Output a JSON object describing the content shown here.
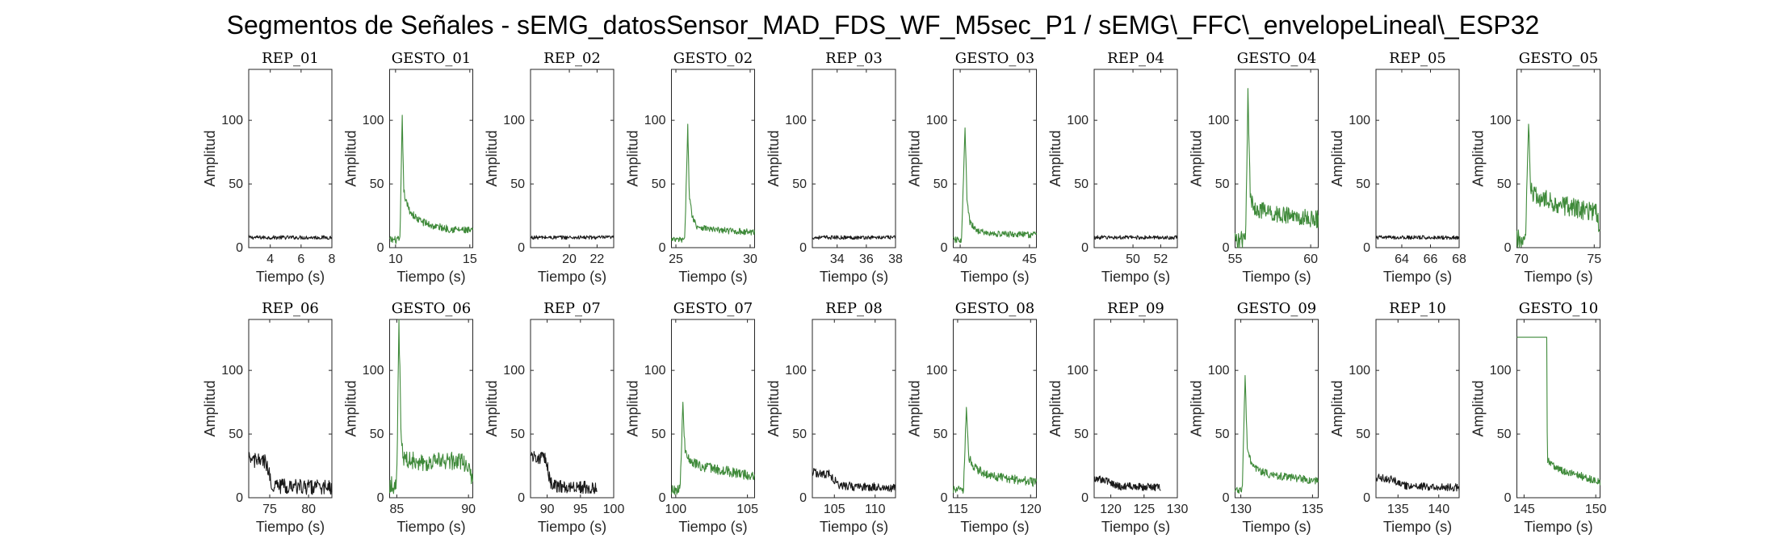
{
  "figure": {
    "title": "Segmentos de Señales - sEMG_datosSensor_MAD_FDS_WF_M5sec_P1 / sEMG\\_FFC\\_envelopeLineal\\_ESP32"
  },
  "colors": {
    "rep": "#1a1a1a",
    "gesto": "#3f8a3a",
    "axis": "#262626"
  },
  "chart_data": [
    {
      "type": "line",
      "title": "REP_01",
      "xlabel": "Tiempo (s)",
      "ylabel": "Amplitud",
      "xlim": [
        2.6,
        8
      ],
      "ylim": [
        0,
        140
      ],
      "xticks": [
        4,
        6,
        8
      ],
      "yticks": [
        0,
        50,
        100
      ],
      "color": "rep",
      "series": [
        {
          "x": [
            2.6,
            8
          ],
          "y_mean": [
            8,
            8
          ],
          "noise": 1.5
        }
      ]
    },
    {
      "type": "line",
      "title": "GESTO_01",
      "xlabel": "Tiempo (s)",
      "ylabel": "Amplitud",
      "xlim": [
        9.6,
        15.2
      ],
      "ylim": [
        0,
        140
      ],
      "xticks": [
        10,
        15
      ],
      "yticks": [
        0,
        50,
        100
      ],
      "color": "gesto",
      "series": [
        {
          "x": [
            9.6,
            10.3,
            10.45,
            10.55,
            10.7,
            11.0,
            11.5,
            12.5,
            13.5,
            15.2
          ],
          "y_mean": [
            6,
            6,
            104,
            45,
            36,
            28,
            22,
            17,
            15,
            13
          ],
          "noise": 3
        }
      ]
    },
    {
      "type": "line",
      "title": "REP_02",
      "xlabel": "Tiempo (s)",
      "ylabel": "Amplitud",
      "xlim": [
        17.2,
        23.2
      ],
      "ylim": [
        0,
        140
      ],
      "xticks": [
        20,
        22
      ],
      "yticks": [
        0,
        50,
        100
      ],
      "color": "rep",
      "series": [
        {
          "x": [
            17.2,
            23.2
          ],
          "y_mean": [
            8,
            8
          ],
          "noise": 1.5
        }
      ]
    },
    {
      "type": "line",
      "title": "GESTO_02",
      "xlabel": "Tiempo (s)",
      "ylabel": "Amplitud",
      "xlim": [
        24.7,
        30.3
      ],
      "ylim": [
        0,
        140
      ],
      "xticks": [
        25,
        30
      ],
      "yticks": [
        0,
        50,
        100
      ],
      "color": "gesto",
      "series": [
        {
          "x": [
            24.7,
            25.6,
            25.8,
            25.9,
            26.1,
            26.4,
            27.5,
            30.3
          ],
          "y_mean": [
            6,
            6,
            97,
            40,
            25,
            17,
            14,
            12
          ],
          "noise": 2.5
        }
      ]
    },
    {
      "type": "line",
      "title": "REP_03",
      "xlabel": "Tiempo (s)",
      "ylabel": "Amplitud",
      "xlim": [
        32.3,
        38
      ],
      "ylim": [
        0,
        140
      ],
      "xticks": [
        34,
        36,
        38
      ],
      "yticks": [
        0,
        50,
        100
      ],
      "color": "rep",
      "series": [
        {
          "x": [
            32.3,
            38
          ],
          "y_mean": [
            8,
            8
          ],
          "noise": 1.5
        }
      ]
    },
    {
      "type": "line",
      "title": "GESTO_03",
      "xlabel": "Tiempo (s)",
      "ylabel": "Amplitud",
      "xlim": [
        39.5,
        45.5
      ],
      "ylim": [
        0,
        140
      ],
      "xticks": [
        40,
        45
      ],
      "yticks": [
        0,
        50,
        100
      ],
      "color": "gesto",
      "series": [
        {
          "x": [
            39.5,
            40.1,
            40.35,
            40.5,
            40.7,
            41.1,
            42,
            45.5
          ],
          "y_mean": [
            6,
            6,
            94,
            35,
            20,
            14,
            11,
            10
          ],
          "noise": 2.5
        }
      ]
    },
    {
      "type": "line",
      "title": "REP_04",
      "xlabel": "Tiempo (s)",
      "ylabel": "Amplitud",
      "xlim": [
        47.2,
        53.2
      ],
      "ylim": [
        0,
        140
      ],
      "xticks": [
        50,
        52
      ],
      "yticks": [
        0,
        50,
        100
      ],
      "color": "rep",
      "series": [
        {
          "x": [
            47.2,
            53.2
          ],
          "y_mean": [
            8,
            8
          ],
          "noise": 1.5
        }
      ]
    },
    {
      "type": "line",
      "title": "GESTO_04",
      "xlabel": "Tiempo (s)",
      "ylabel": "Amplitud",
      "xlim": [
        55,
        60.5
      ],
      "ylim": [
        0,
        140
      ],
      "xticks": [
        55,
        60
      ],
      "yticks": [
        0,
        50,
        100
      ],
      "color": "gesto",
      "series": [
        {
          "x": [
            55,
            55.7,
            55.85,
            56,
            56.2,
            57,
            58.5,
            60.5
          ],
          "y_mean": [
            6,
            6,
            125,
            40,
            32,
            28,
            25,
            22
          ],
          "noise": 7
        }
      ]
    },
    {
      "type": "line",
      "title": "REP_05",
      "xlabel": "Tiempo (s)",
      "ylabel": "Amplitud",
      "xlim": [
        62.2,
        68
      ],
      "ylim": [
        0,
        140
      ],
      "xticks": [
        64,
        66,
        68
      ],
      "yticks": [
        0,
        50,
        100
      ],
      "color": "rep",
      "series": [
        {
          "x": [
            62.2,
            68
          ],
          "y_mean": [
            8,
            8
          ],
          "noise": 1.5
        }
      ]
    },
    {
      "type": "line",
      "title": "GESTO_05",
      "xlabel": "Tiempo (s)",
      "ylabel": "Amplitud",
      "xlim": [
        69.7,
        75.4
      ],
      "ylim": [
        0,
        140
      ],
      "xticks": [
        70,
        75
      ],
      "yticks": [
        0,
        50,
        100
      ],
      "color": "gesto",
      "series": [
        {
          "x": [
            69.7,
            70.3,
            70.5,
            70.65,
            70.9,
            72,
            74,
            75.2,
            75.4
          ],
          "y_mean": [
            6,
            6,
            97,
            45,
            40,
            36,
            30,
            28,
            10
          ],
          "noise": 8
        }
      ]
    },
    {
      "type": "line",
      "title": "REP_06",
      "xlabel": "Tiempo (s)",
      "ylabel": "Amplitud",
      "xlim": [
        72.3,
        83
      ],
      "ylim": [
        0,
        140
      ],
      "xticks": [
        75,
        80
      ],
      "yticks": [
        0,
        50,
        100
      ],
      "color": "rep",
      "series": [
        {
          "x": [
            72.3,
            74.5,
            75.2,
            76,
            83
          ],
          "y_mean": [
            30,
            28,
            12,
            9,
            8
          ],
          "noise": 6
        }
      ]
    },
    {
      "type": "line",
      "title": "GESTO_06",
      "xlabel": "Tiempo (s)",
      "ylabel": "Amplitud",
      "xlim": [
        84.5,
        90.3
      ],
      "ylim": [
        0,
        140
      ],
      "xticks": [
        85,
        90
      ],
      "yticks": [
        0,
        50,
        100
      ],
      "color": "gesto",
      "series": [
        {
          "x": [
            84.5,
            85,
            85.15,
            85.3,
            85.5,
            87,
            89,
            90,
            90.3
          ],
          "y_mean": [
            10,
            10,
            140,
            45,
            30,
            28,
            29,
            27,
            10
          ],
          "noise": 7
        }
      ]
    },
    {
      "type": "line",
      "title": "REP_07",
      "xlabel": "Tiempo (s)",
      "ylabel": "Amplitud",
      "xlim": [
        87.5,
        100
      ],
      "ylim": [
        0,
        140
      ],
      "xticks": [
        90,
        95,
        100
      ],
      "yticks": [
        0,
        50,
        100
      ],
      "color": "rep",
      "series": [
        {
          "x": [
            87.5,
            89.8,
            90.5,
            91.5,
            97.5
          ],
          "y_mean": [
            33,
            30,
            12,
            9,
            8
          ],
          "noise": 5
        }
      ]
    },
    {
      "type": "line",
      "title": "GESTO_07",
      "xlabel": "Tiempo (s)",
      "ylabel": "Amplitud",
      "xlim": [
        99.7,
        105.5
      ],
      "ylim": [
        0,
        140
      ],
      "xticks": [
        100,
        105
      ],
      "yticks": [
        0,
        50,
        100
      ],
      "color": "gesto",
      "series": [
        {
          "x": [
            99.7,
            100.3,
            100.5,
            100.65,
            101,
            102,
            104,
            105.5
          ],
          "y_mean": [
            6,
            6,
            75,
            35,
            28,
            24,
            20,
            17
          ],
          "noise": 4
        }
      ]
    },
    {
      "type": "line",
      "title": "REP_08",
      "xlabel": "Tiempo (s)",
      "ylabel": "Amplitud",
      "xlim": [
        102.3,
        112.5
      ],
      "ylim": [
        0,
        140
      ],
      "xticks": [
        105,
        110
      ],
      "yticks": [
        0,
        50,
        100
      ],
      "color": "rep",
      "series": [
        {
          "x": [
            102.3,
            104.5,
            105.5,
            106.5,
            112.5
          ],
          "y_mean": [
            20,
            18,
            10,
            9,
            8
          ],
          "noise": 3.5
        }
      ]
    },
    {
      "type": "line",
      "title": "GESTO_08",
      "xlabel": "Tiempo (s)",
      "ylabel": "Amplitud",
      "xlim": [
        114.7,
        120.4
      ],
      "ylim": [
        0,
        140
      ],
      "xticks": [
        115,
        120
      ],
      "yticks": [
        0,
        50,
        100
      ],
      "color": "gesto",
      "series": [
        {
          "x": [
            114.7,
            115.4,
            115.6,
            115.75,
            116.1,
            117,
            118.5,
            120.4
          ],
          "y_mean": [
            6,
            6,
            71,
            32,
            24,
            18,
            15,
            12
          ],
          "noise": 3.5
        }
      ]
    },
    {
      "type": "line",
      "title": "REP_09",
      "xlabel": "Tiempo (s)",
      "ylabel": "Amplitud",
      "xlim": [
        117.5,
        130
      ],
      "ylim": [
        0,
        140
      ],
      "xticks": [
        120,
        125,
        130
      ],
      "yticks": [
        0,
        50,
        100
      ],
      "color": "rep",
      "series": [
        {
          "x": [
            117.5,
            119.5,
            120.5,
            121.5,
            127.5
          ],
          "y_mean": [
            15,
            13,
            10,
            9,
            8
          ],
          "noise": 3
        }
      ]
    },
    {
      "type": "line",
      "title": "GESTO_09",
      "xlabel": "Tiempo (s)",
      "ylabel": "Amplitud",
      "xlim": [
        129.6,
        135.4
      ],
      "ylim": [
        0,
        140
      ],
      "xticks": [
        130,
        135
      ],
      "yticks": [
        0,
        50,
        100
      ],
      "color": "gesto",
      "series": [
        {
          "x": [
            129.6,
            130.1,
            130.3,
            130.45,
            130.8,
            132,
            134,
            135.4
          ],
          "y_mean": [
            6,
            6,
            96,
            38,
            24,
            18,
            15,
            13
          ],
          "noise": 3
        }
      ]
    },
    {
      "type": "line",
      "title": "REP_10",
      "xlabel": "Tiempo (s)",
      "ylabel": "Amplitud",
      "xlim": [
        132.3,
        142.5
      ],
      "ylim": [
        0,
        140
      ],
      "xticks": [
        135,
        140
      ],
      "yticks": [
        0,
        50,
        100
      ],
      "color": "rep",
      "series": [
        {
          "x": [
            132.3,
            134.5,
            135.5,
            136.5,
            142.5
          ],
          "y_mean": [
            16,
            14,
            10,
            9,
            8
          ],
          "noise": 3
        }
      ]
    },
    {
      "type": "line",
      "title": "GESTO_10",
      "xlabel": "Tiempo (s)",
      "ylabel": "Amplitud",
      "xlim": [
        144.5,
        150.3
      ],
      "ylim": [
        0,
        140
      ],
      "xticks": [
        145,
        150
      ],
      "yticks": [
        0,
        50,
        100
      ],
      "color": "gesto",
      "series": [
        {
          "x": [
            144.5,
            146.6,
            146.62,
            146.9,
            147.5,
            149,
            150.3
          ],
          "y_mean": [
            126,
            126,
            30,
            26,
            22,
            17,
            12
          ],
          "noise": 3,
          "flat_until": 146.6
        }
      ]
    }
  ]
}
